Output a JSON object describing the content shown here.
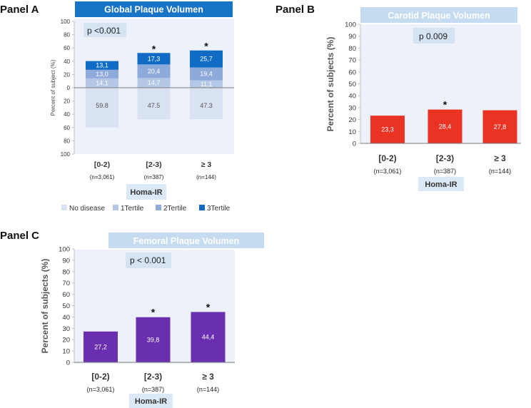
{
  "chart_data": [
    {
      "panel": "Panel A",
      "type": "bar",
      "stacked": true,
      "title": "Global Plaque Volumen",
      "ylabel": "Percent of subject (%)",
      "xlabel": "Homa-IR",
      "ylim": [
        -100,
        100
      ],
      "yticks": [
        100,
        80,
        60,
        40,
        20,
        0,
        20,
        40,
        60,
        80,
        100
      ],
      "p_value": "p <0.001",
      "categories": [
        "[0-2)",
        "[2-3)",
        "≥ 3"
      ],
      "n_labels": [
        "(n=3,061)",
        "(n=387)",
        "(n=144)"
      ],
      "significance": [
        "",
        "*",
        "*"
      ],
      "series": [
        {
          "name": "No disease",
          "color": "#d9e2f3",
          "values": [
            -59.8,
            -47.5,
            -47.3
          ],
          "labels": [
            "59.8",
            "47.5",
            "47.3"
          ]
        },
        {
          "name": "1Tertile",
          "color": "#b4c7e7",
          "values": [
            14.1,
            14.7,
            11.1
          ],
          "labels": [
            "14,1",
            "14,7",
            "11,1"
          ]
        },
        {
          "name": "2Tertile",
          "color": "#8eaadb",
          "values": [
            13.0,
            20.4,
            19.4
          ],
          "labels": [
            "13,0",
            "20,4",
            "19,4"
          ]
        },
        {
          "name": "3Tertile",
          "color": "#0f6bc4",
          "values": [
            13.1,
            17.3,
            25.7
          ],
          "labels": [
            "13,1",
            "17,3",
            "25,7"
          ]
        }
      ]
    },
    {
      "panel": "Panel B",
      "type": "bar",
      "title": "Carotid Plaque Volumen",
      "ylabel": "Percent of subjects (%)",
      "xlabel": "Homa-IR",
      "ylim": [
        0,
        100
      ],
      "yticks": [
        0,
        10,
        20,
        30,
        40,
        50,
        60,
        70,
        80,
        90,
        100
      ],
      "p_value": "p 0.009",
      "categories": [
        "[0-2)",
        "[2-3)",
        "≥ 3"
      ],
      "n_labels": [
        "(n=3,061)",
        "(n=387)",
        "(n=144)"
      ],
      "significance": [
        "",
        "*",
        ""
      ],
      "color": "#ea3323",
      "values": [
        23.3,
        28.4,
        27.8
      ],
      "labels": [
        "23,3",
        "28,4",
        "27,8"
      ]
    },
    {
      "panel": "Panel C",
      "type": "bar",
      "title": "Femoral Plaque Volumen",
      "ylabel": "Percent of subjects (%)",
      "xlabel": "Homa-IR",
      "ylim": [
        0,
        100
      ],
      "yticks": [
        0,
        10,
        20,
        30,
        40,
        50,
        60,
        70,
        80,
        90,
        100
      ],
      "p_value": "p < 0.001",
      "categories": [
        "[0-2)",
        "[2-3)",
        "≥ 3"
      ],
      "n_labels": [
        "(n=3,061)",
        "(n=387)",
        "(n=144)"
      ],
      "significance": [
        "",
        "*",
        "*"
      ],
      "color": "#6a2fb0",
      "values": [
        27.2,
        39.8,
        44.4
      ],
      "labels": [
        "27,2",
        "39,8",
        "44,4"
      ]
    }
  ],
  "style": {
    "panel_bg": "#edf2fa",
    "pbox_bg": "#d5e3f3",
    "title_a_bg": "#1874c6",
    "title_a_fg": "#ffffff",
    "title_bc_bg": "#c4dbf0",
    "title_bc_fg": "#ffffff",
    "xgroup_bg": "#dbe8f6"
  }
}
